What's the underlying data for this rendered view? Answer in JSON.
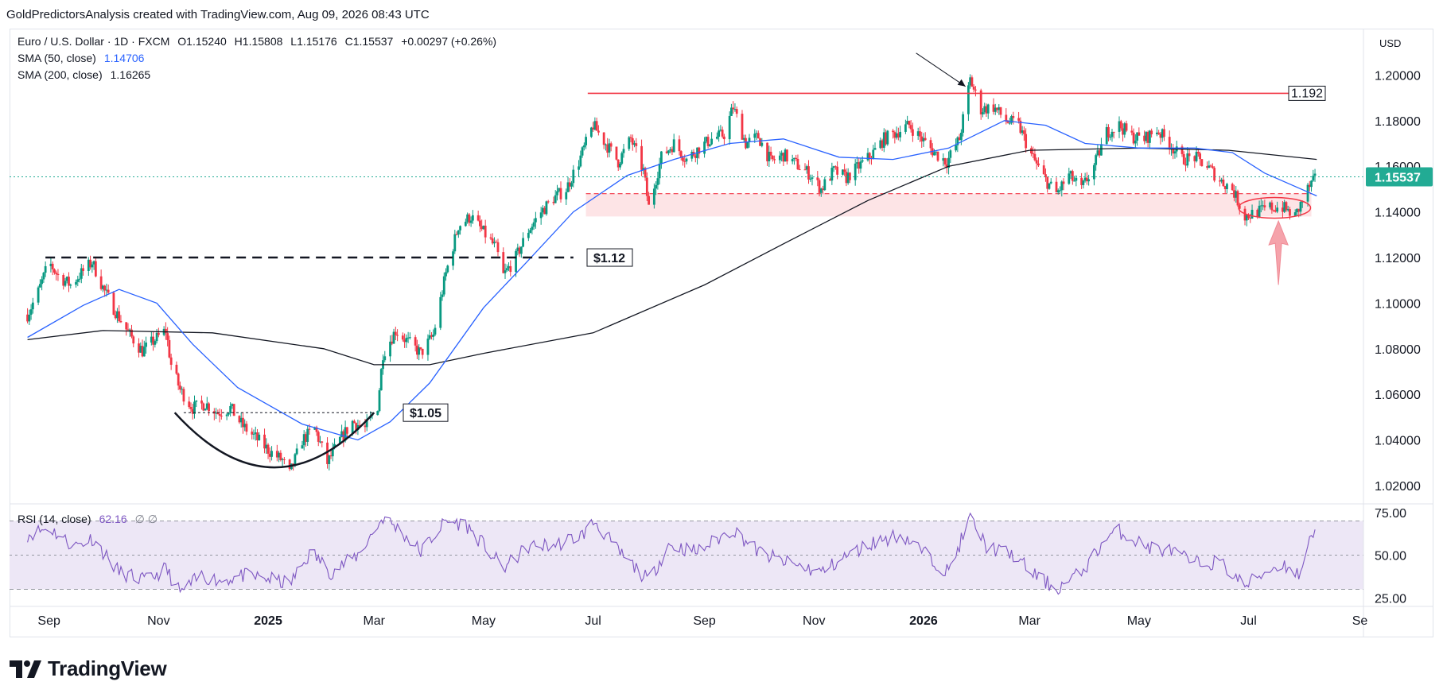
{
  "header": {
    "attribution": "GoldPredictorsAnalysis created with TradingView.com, Aug 09, 2026 08:43 UTC"
  },
  "legend": {
    "symbol": "Euro / U.S. Dollar · 1D · FXCM",
    "open_label": "O",
    "open": "1.15240",
    "high_label": "H",
    "high": "1.15808",
    "low_label": "L",
    "low": "1.15176",
    "close_label": "C",
    "close": "1.15537",
    "change": "+0.00297 (+0.26%)",
    "sma50_label": "SMA (50, close)",
    "sma50_value": "1.14706",
    "sma200_label": "SMA (200, close)",
    "sma200_value": "1.16265",
    "rsi_label": "RSI (14, close)",
    "rsi_value": "62.16",
    "rsi_extra": "∅ ∅"
  },
  "currency": "USD",
  "footer": {
    "brand": "TradingView"
  },
  "colors": {
    "up": "#089981",
    "down": "#f23645",
    "sma50": "#2962ff",
    "sma200": "#131722",
    "rsi": "#7e57c2",
    "rsi_band": "#ede7f6",
    "resistance": "#f23645",
    "support_zone": "#fde4e6",
    "last_price": "#22ab94"
  },
  "chart_data": [
    {
      "type": "candlestick",
      "title": "Euro / U.S. Dollar",
      "interval": "1D",
      "x_tick_labels": [
        "Sep",
        "Nov",
        "2025",
        "Mar",
        "May",
        "Jul",
        "Sep",
        "Nov",
        "2026",
        "Mar",
        "May",
        "Jul",
        "Se"
      ],
      "y_tick_labels": [
        "1.20000",
        "1.18000",
        "1.16000",
        "1.14000",
        "1.12000",
        "1.10000",
        "1.08000",
        "1.06000",
        "1.04000",
        "1.02000"
      ],
      "ylim": [
        1.012,
        1.212
      ],
      "last_price": 1.15537,
      "last_price_label": "1.15537",
      "close_path": [
        [
          "2024-08-20",
          1.095
        ],
        [
          "2024-08-26",
          1.105
        ],
        [
          "2024-09-01",
          1.118
        ],
        [
          "2024-09-06",
          1.112
        ],
        [
          "2024-09-13",
          1.108
        ],
        [
          "2024-09-20",
          1.114
        ],
        [
          "2024-09-25",
          1.118
        ],
        [
          "2024-10-02",
          1.105
        ],
        [
          "2024-10-09",
          1.095
        ],
        [
          "2024-10-16",
          1.086
        ],
        [
          "2024-10-23",
          1.079
        ],
        [
          "2024-10-30",
          1.084
        ],
        [
          "2024-11-05",
          1.088
        ],
        [
          "2024-11-08",
          1.073
        ],
        [
          "2024-11-13",
          1.062
        ],
        [
          "2024-11-20",
          1.054
        ],
        [
          "2024-11-27",
          1.056
        ],
        [
          "2024-12-04",
          1.052
        ],
        [
          "2024-12-11",
          1.054
        ],
        [
          "2024-12-18",
          1.046
        ],
        [
          "2024-12-25",
          1.041
        ],
        [
          "2025-01-02",
          1.035
        ],
        [
          "2025-01-09",
          1.031
        ],
        [
          "2025-01-13",
          1.025
        ],
        [
          "2025-01-20",
          1.04
        ],
        [
          "2025-01-27",
          1.045
        ],
        [
          "2025-02-03",
          1.03
        ],
        [
          "2025-02-10",
          1.04
        ],
        [
          "2025-02-17",
          1.048
        ],
        [
          "2025-02-24",
          1.045
        ],
        [
          "2025-03-03",
          1.055
        ],
        [
          "2025-03-06",
          1.078
        ],
        [
          "2025-03-13",
          1.088
        ],
        [
          "2025-03-20",
          1.083
        ],
        [
          "2025-03-27",
          1.078
        ],
        [
          "2025-04-03",
          1.086
        ],
        [
          "2025-04-10",
          1.113
        ],
        [
          "2025-04-17",
          1.134
        ],
        [
          "2025-04-24",
          1.138
        ],
        [
          "2025-05-01",
          1.131
        ],
        [
          "2025-05-08",
          1.124
        ],
        [
          "2025-05-12",
          1.112
        ],
        [
          "2025-05-19",
          1.12
        ],
        [
          "2025-05-26",
          1.132
        ],
        [
          "2025-06-02",
          1.14
        ],
        [
          "2025-06-09",
          1.146
        ],
        [
          "2025-06-16",
          1.15
        ],
        [
          "2025-06-23",
          1.162
        ],
        [
          "2025-07-01",
          1.178
        ],
        [
          "2025-07-08",
          1.17
        ],
        [
          "2025-07-15",
          1.162
        ],
        [
          "2025-07-22",
          1.172
        ],
        [
          "2025-07-29",
          1.158
        ],
        [
          "2025-08-01",
          1.142
        ],
        [
          "2025-08-08",
          1.164
        ],
        [
          "2025-08-15",
          1.17
        ],
        [
          "2025-08-22",
          1.163
        ],
        [
          "2025-08-29",
          1.168
        ],
        [
          "2025-09-05",
          1.172
        ],
        [
          "2025-09-12",
          1.174
        ],
        [
          "2025-09-17",
          1.186
        ],
        [
          "2025-09-24",
          1.17
        ],
        [
          "2025-10-01",
          1.173
        ],
        [
          "2025-10-08",
          1.162
        ],
        [
          "2025-10-15",
          1.165
        ],
        [
          "2025-10-22",
          1.161
        ],
        [
          "2025-10-29",
          1.157
        ],
        [
          "2025-11-05",
          1.15
        ],
        [
          "2025-11-12",
          1.158
        ],
        [
          "2025-11-19",
          1.155
        ],
        [
          "2025-11-26",
          1.16
        ],
        [
          "2025-12-03",
          1.165
        ],
        [
          "2025-12-10",
          1.172
        ],
        [
          "2025-12-17",
          1.175
        ],
        [
          "2025-12-24",
          1.178
        ],
        [
          "2025-12-31",
          1.172
        ],
        [
          "2026-01-07",
          1.166
        ],
        [
          "2026-01-14",
          1.162
        ],
        [
          "2026-01-21",
          1.172
        ],
        [
          "2026-01-27",
          1.198
        ],
        [
          "2026-02-02",
          1.185
        ],
        [
          "2026-02-09",
          1.186
        ],
        [
          "2026-02-16",
          1.18
        ],
        [
          "2026-02-23",
          1.178
        ],
        [
          "2026-03-02",
          1.165
        ],
        [
          "2026-03-09",
          1.155
        ],
        [
          "2026-03-16",
          1.148
        ],
        [
          "2026-03-23",
          1.156
        ],
        [
          "2026-03-30",
          1.15
        ],
        [
          "2026-04-06",
          1.16
        ],
        [
          "2026-04-13",
          1.175
        ],
        [
          "2026-04-20",
          1.178
        ],
        [
          "2026-04-27",
          1.173
        ],
        [
          "2026-05-04",
          1.172
        ],
        [
          "2026-05-11",
          1.176
        ],
        [
          "2026-05-18",
          1.17
        ],
        [
          "2026-05-25",
          1.163
        ],
        [
          "2026-06-01",
          1.164
        ],
        [
          "2026-06-08",
          1.16
        ],
        [
          "2026-06-15",
          1.154
        ],
        [
          "2026-06-22",
          1.15
        ],
        [
          "2026-06-29",
          1.138
        ],
        [
          "2026-07-06",
          1.14
        ],
        [
          "2026-07-13",
          1.142
        ],
        [
          "2026-07-20",
          1.142
        ],
        [
          "2026-07-27",
          1.138
        ],
        [
          "2026-08-03",
          1.15
        ],
        [
          "2026-08-08",
          1.155
        ]
      ],
      "sma50": [
        [
          "2024-08-20",
          1.085
        ],
        [
          "2024-09-20",
          1.099
        ],
        [
          "2024-10-10",
          1.106
        ],
        [
          "2024-10-31",
          1.1
        ],
        [
          "2024-11-20",
          1.082
        ],
        [
          "2024-12-15",
          1.063
        ],
        [
          "2025-01-20",
          1.047
        ],
        [
          "2025-02-20",
          1.04
        ],
        [
          "2025-03-10",
          1.048
        ],
        [
          "2025-04-01",
          1.065
        ],
        [
          "2025-05-01",
          1.098
        ],
        [
          "2025-05-25",
          1.118
        ],
        [
          "2025-06-20",
          1.14
        ],
        [
          "2025-07-20",
          1.156
        ],
        [
          "2025-08-15",
          1.163
        ],
        [
          "2025-09-15",
          1.17
        ],
        [
          "2025-10-15",
          1.172
        ],
        [
          "2025-11-15",
          1.164
        ],
        [
          "2025-12-15",
          1.163
        ],
        [
          "2026-01-15",
          1.168
        ],
        [
          "2026-02-15",
          1.18
        ],
        [
          "2026-03-10",
          1.178
        ],
        [
          "2026-04-01",
          1.17
        ],
        [
          "2026-05-01",
          1.168
        ],
        [
          "2026-06-01",
          1.168
        ],
        [
          "2026-06-22",
          1.166
        ],
        [
          "2026-07-10",
          1.157
        ],
        [
          "2026-08-08",
          1.147
        ]
      ],
      "sma200": [
        [
          "2024-08-20",
          1.084
        ],
        [
          "2024-10-01",
          1.088
        ],
        [
          "2024-12-01",
          1.087
        ],
        [
          "2025-02-01",
          1.08
        ],
        [
          "2025-03-01",
          1.073
        ],
        [
          "2025-04-01",
          1.073
        ],
        [
          "2025-05-01",
          1.078
        ],
        [
          "2025-07-01",
          1.087
        ],
        [
          "2025-09-01",
          1.108
        ],
        [
          "2025-10-15",
          1.126
        ],
        [
          "2025-12-01",
          1.145
        ],
        [
          "2026-01-15",
          1.16
        ],
        [
          "2026-03-01",
          1.167
        ],
        [
          "2026-05-01",
          1.168
        ],
        [
          "2026-06-20",
          1.167
        ],
        [
          "2026-08-08",
          1.163
        ]
      ],
      "annotations": [
        {
          "type": "resistance_line",
          "value": 1.192,
          "label": "1.192"
        },
        {
          "type": "support_zone",
          "range": [
            1.138,
            1.148
          ]
        },
        {
          "type": "dashed_level",
          "value": 1.12,
          "label": "$1.12"
        },
        {
          "type": "dashed_level",
          "value": 1.052,
          "label": "$1.05"
        },
        {
          "type": "rounded_bottom_arc",
          "from": "2024-11-10",
          "to": "2025-03-01"
        },
        {
          "type": "arrow",
          "target": "2026-01-27"
        },
        {
          "type": "highlight_ellipse",
          "from": "2026-06-29",
          "to": "2026-08-01"
        },
        {
          "type": "up_arrow",
          "at": "2026-07-15"
        }
      ]
    },
    {
      "type": "line",
      "title": "RSI (14, close)",
      "y_tick_labels": [
        "75.00",
        "50.00",
        "25.00"
      ],
      "ylim": [
        20,
        80
      ],
      "bands": [
        30,
        50,
        70
      ],
      "last_value": 62.16,
      "series": [
        [
          "2024-08-20",
          62
        ],
        [
          "2024-09-01",
          66
        ],
        [
          "2024-09-15",
          55
        ],
        [
          "2024-09-25",
          60
        ],
        [
          "2024-10-10",
          40
        ],
        [
          "2024-10-25",
          35
        ],
        [
          "2024-11-05",
          42
        ],
        [
          "2024-11-13",
          28
        ],
        [
          "2024-11-25",
          38
        ],
        [
          "2024-12-05",
          35
        ],
        [
          "2024-12-18",
          38
        ],
        [
          "2025-01-02",
          36
        ],
        [
          "2025-01-13",
          33
        ],
        [
          "2025-01-25",
          52
        ],
        [
          "2025-02-05",
          40
        ],
        [
          "2025-02-20",
          50
        ],
        [
          "2025-03-06",
          72
        ],
        [
          "2025-03-15",
          65
        ],
        [
          "2025-03-27",
          52
        ],
        [
          "2025-04-10",
          70
        ],
        [
          "2025-04-21",
          68
        ],
        [
          "2025-05-01",
          56
        ],
        [
          "2025-05-12",
          42
        ],
        [
          "2025-05-26",
          55
        ],
        [
          "2025-06-10",
          56
        ],
        [
          "2025-06-25",
          62
        ],
        [
          "2025-07-02",
          70
        ],
        [
          "2025-07-15",
          52
        ],
        [
          "2025-08-01",
          35
        ],
        [
          "2025-08-12",
          56
        ],
        [
          "2025-08-28",
          52
        ],
        [
          "2025-09-17",
          65
        ],
        [
          "2025-10-01",
          52
        ],
        [
          "2025-10-15",
          46
        ],
        [
          "2025-11-05",
          40
        ],
        [
          "2025-11-20",
          50
        ],
        [
          "2025-12-05",
          58
        ],
        [
          "2025-12-20",
          62
        ],
        [
          "2026-01-05",
          48
        ],
        [
          "2026-01-15",
          40
        ],
        [
          "2026-01-27",
          72
        ],
        [
          "2026-02-05",
          55
        ],
        [
          "2026-02-20",
          50
        ],
        [
          "2026-03-02",
          40
        ],
        [
          "2026-03-16",
          30
        ],
        [
          "2026-03-30",
          40
        ],
        [
          "2026-04-13",
          60
        ],
        [
          "2026-04-20",
          64
        ],
        [
          "2026-05-05",
          55
        ],
        [
          "2026-05-20",
          52
        ],
        [
          "2026-06-01",
          45
        ],
        [
          "2026-06-15",
          46
        ],
        [
          "2026-06-29",
          32
        ],
        [
          "2026-07-10",
          40
        ],
        [
          "2026-07-20",
          45
        ],
        [
          "2026-07-30",
          38
        ],
        [
          "2026-08-04",
          62
        ],
        [
          "2026-08-08",
          62
        ]
      ]
    }
  ]
}
